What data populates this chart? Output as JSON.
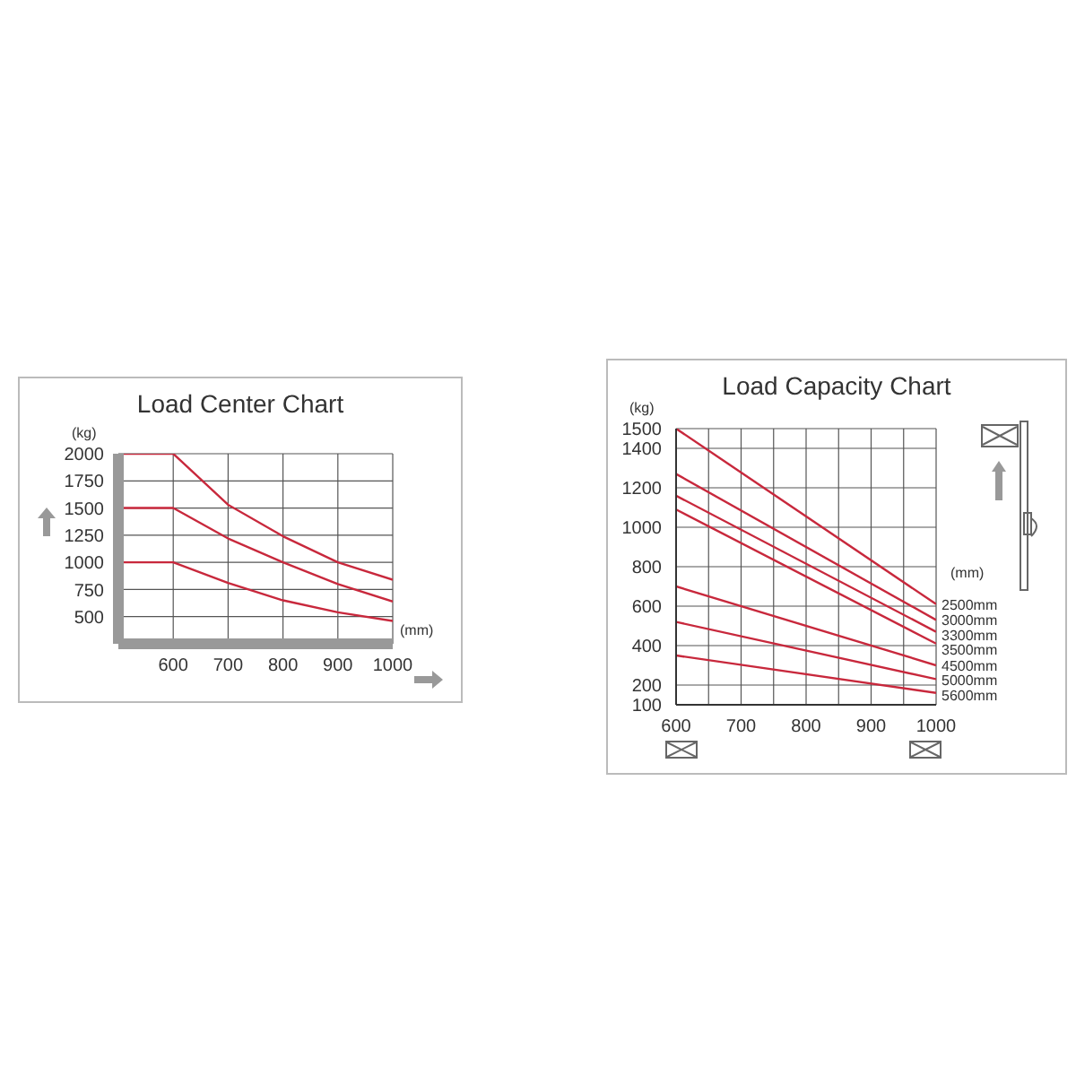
{
  "chart_data": [
    {
      "type": "line",
      "title": "Load Center Chart",
      "xlabel": "(mm)",
      "ylabel": "(kg)",
      "x": [
        500,
        600,
        700,
        800,
        900,
        1000
      ],
      "xlim": [
        500,
        1000
      ],
      "xticks": [
        600,
        700,
        800,
        900,
        1000
      ],
      "ylim": [
        250,
        2000
      ],
      "yticks": [
        500,
        750,
        1000,
        1250,
        1500,
        1750,
        2000
      ],
      "grid": true,
      "marker": "none",
      "line_style": "solid",
      "series": [
        {
          "color": "#c8283c",
          "values": [
            2000,
            2000,
            1530,
            1240,
            1000,
            840
          ]
        },
        {
          "color": "#c8283c",
          "values": [
            1500,
            1500,
            1220,
            1000,
            800,
            640
          ]
        },
        {
          "color": "#c8283c",
          "values": [
            1000,
            1000,
            810,
            650,
            540,
            460
          ]
        }
      ]
    },
    {
      "type": "line",
      "title": "Load Capacity Chart",
      "ylabel": "(kg)",
      "legend_title": "(mm)",
      "x": [
        600,
        1000
      ],
      "xlim": [
        600,
        1000
      ],
      "xticks": [
        600,
        {
          "value": 650,
          "label": null
        },
        700,
        {
          "value": 750,
          "label": null
        },
        800,
        {
          "value": 850,
          "label": null
        },
        900,
        {
          "value": 950,
          "label": null
        },
        1000
      ],
      "ylim": [
        100,
        1500
      ],
      "yticks": [
        100,
        200,
        400,
        600,
        800,
        1000,
        1200,
        1400,
        1500
      ],
      "grid": true,
      "marker": "none",
      "line_style": "solid",
      "series": [
        {
          "name": "2500mm",
          "color": "#c8283c",
          "values": [
            1500,
            610
          ]
        },
        {
          "name": "3000mm",
          "color": "#c8283c",
          "values": [
            1270,
            530
          ]
        },
        {
          "name": "3300mm",
          "color": "#c8283c",
          "values": [
            1160,
            470
          ]
        },
        {
          "name": "3500mm",
          "color": "#c8283c",
          "values": [
            1090,
            410
          ]
        },
        {
          "name": "4500mm",
          "color": "#c8283c",
          "values": [
            700,
            300
          ]
        },
        {
          "name": "5000mm",
          "color": "#c8283c",
          "values": [
            520,
            230
          ]
        },
        {
          "name": "5600mm",
          "color": "#c8283c",
          "values": [
            350,
            160
          ]
        }
      ]
    }
  ]
}
